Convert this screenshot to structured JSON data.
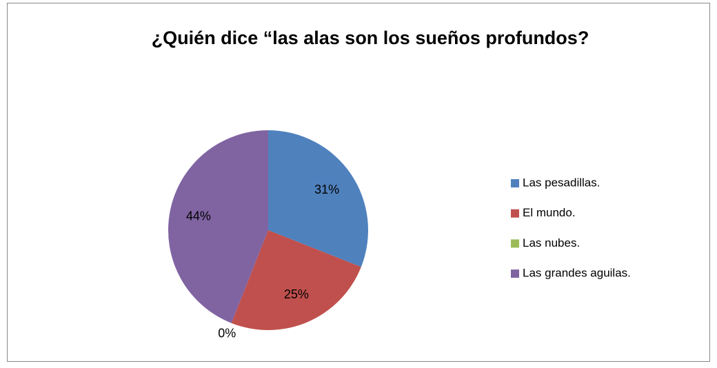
{
  "chart_data": {
    "type": "pie",
    "title": "¿Quién dice “las alas son los sueños profundos?",
    "categories": [
      "Las pesadillas.",
      "El mundo.",
      "Las nubes.",
      "Las grandes aguilas."
    ],
    "values": [
      31,
      25,
      0,
      44
    ],
    "value_labels": [
      "31%",
      "25%",
      "0%",
      "44%"
    ],
    "colors": [
      "#4f81bd",
      "#c0504d",
      "#9bbb59",
      "#8064a2"
    ],
    "legend": "right"
  }
}
